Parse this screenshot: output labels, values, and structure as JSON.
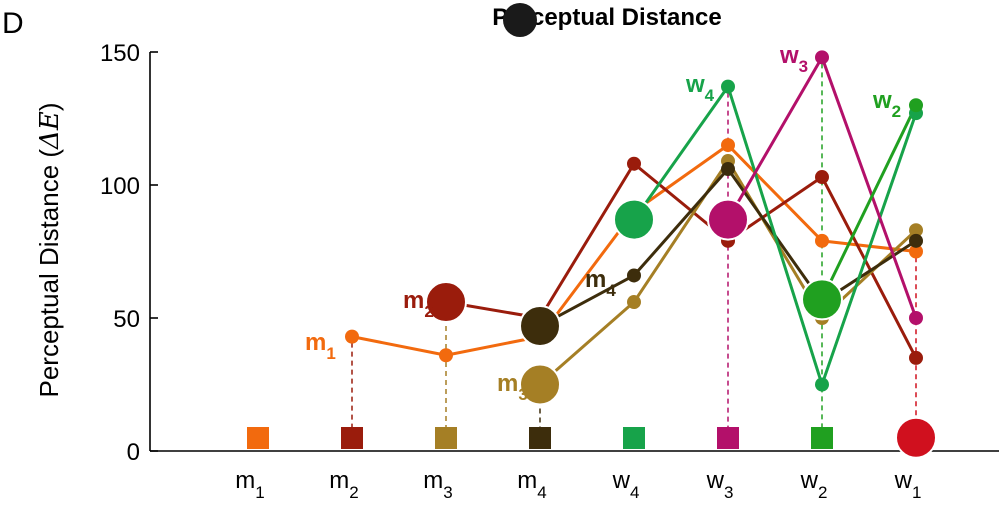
{
  "panel_letter": "D",
  "chart_data": {
    "type": "line",
    "title": "Perceptual Distance",
    "ylabel_text": "Perceptual Distance (",
    "ylabel_symbol": "ΔE",
    "ylabel_close": ")",
    "ylim": [
      0,
      150
    ],
    "yticks": [
      0,
      50,
      100,
      150
    ],
    "categories": [
      {
        "base": "m",
        "sub": "1",
        "color": "#f26a0e"
      },
      {
        "base": "m",
        "sub": "2",
        "color": "#9a1c0c"
      },
      {
        "base": "m",
        "sub": "3",
        "color": "#a57f25"
      },
      {
        "base": "m",
        "sub": "4",
        "color": "#3d2d0c"
      },
      {
        "base": "w",
        "sub": "4",
        "color": "#17a34a"
      },
      {
        "base": "w",
        "sub": "3",
        "color": "#b3106a"
      },
      {
        "base": "w",
        "sub": "2",
        "color": "#20a020"
      },
      {
        "base": "w",
        "sub": "1",
        "color": "#d0101e"
      }
    ],
    "series": [
      {
        "ref": 0,
        "color": "#f26a0e",
        "values": [
          null,
          43,
          36,
          43,
          90,
          115,
          79,
          75
        ],
        "ref_value": 5
      },
      {
        "ref": 1,
        "color": "#9a1c0c",
        "values": [
          null,
          null,
          56,
          50,
          108,
          79,
          103,
          35
        ],
        "ref_value": 5
      },
      {
        "ref": 2,
        "color": "#a57f25",
        "values": [
          null,
          null,
          null,
          25,
          56,
          109,
          50,
          83
        ],
        "ref_value": 5
      },
      {
        "ref": 3,
        "color": "#3d2d0c",
        "values": [
          null,
          null,
          null,
          47,
          66,
          106,
          56,
          79
        ],
        "ref_value": 5
      },
      {
        "ref": 4,
        "color": "#17a34a",
        "values": [
          null,
          null,
          null,
          null,
          87,
          137,
          25,
          127
        ],
        "ref_value": 5
      },
      {
        "ref": 5,
        "color": "#b3106a",
        "values": [
          null,
          null,
          null,
          null,
          null,
          87,
          148,
          50
        ],
        "ref_value": 5
      },
      {
        "ref": 6,
        "color": "#20a020",
        "values": [
          null,
          null,
          null,
          null,
          null,
          null,
          57,
          130
        ],
        "ref_value": 5
      },
      {
        "ref": 7,
        "color": "#d0101e",
        "values": [
          null,
          null,
          null,
          null,
          null,
          null,
          null,
          5
        ],
        "ref_value": 5
      }
    ],
    "labels": [
      {
        "base": "m",
        "sub": "1",
        "color": "#f26a0e"
      },
      {
        "base": "m",
        "sub": "2",
        "color": "#9a1c0c"
      },
      {
        "base": "m",
        "sub": "3",
        "color": "#a57f25"
      },
      {
        "base": "m",
        "sub": "4",
        "color": "#3d2d0c"
      },
      {
        "base": "w",
        "sub": "4",
        "color": "#17a34a"
      },
      {
        "base": "w",
        "sub": "3",
        "color": "#b3106a"
      },
      {
        "base": "w",
        "sub": "2",
        "color": "#20a020"
      }
    ]
  }
}
